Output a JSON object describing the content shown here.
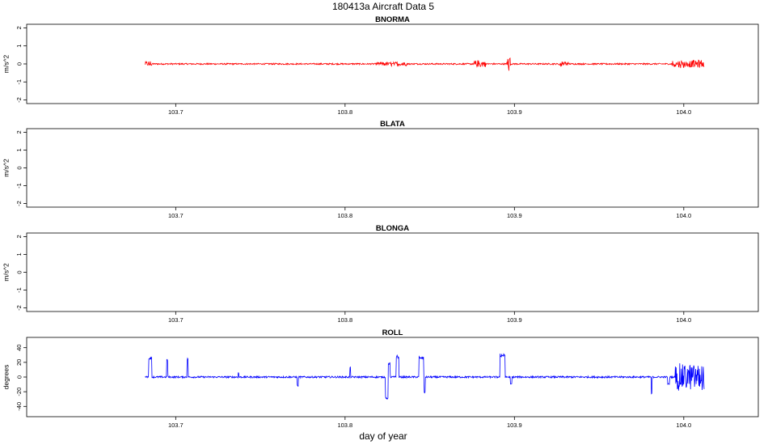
{
  "chart_data": {
    "title": "180413a   Aircraft Data 5",
    "xlabel": "day of year",
    "xlim": [
      103.612,
      104.044
    ],
    "xticks": [
      "103.7",
      "103.8",
      "103.9",
      "104.0"
    ],
    "data_range": [
      103.682,
      104.012
    ],
    "panels": [
      {
        "name": "BNORMA",
        "type": "line",
        "ylabel": "m/s^2",
        "ylim": [
          -2.2,
          2.2
        ],
        "yticks": [
          "-2",
          "-1",
          "0",
          "1",
          "2"
        ],
        "color": "#ff0000",
        "baseline": 0,
        "noise": 0.04,
        "bursts": [
          {
            "x": [
              103.682,
              103.686
            ],
            "amp": 0.14
          },
          {
            "x": [
              103.819,
              103.837
            ],
            "amp": 0.1
          },
          {
            "x": [
              103.876,
              103.883
            ],
            "amp": 0.18
          },
          {
            "x": [
              103.895,
              103.898
            ],
            "amp": 0.42
          },
          {
            "x": [
              103.926,
              103.932
            ],
            "amp": 0.16
          },
          {
            "x": [
              103.993,
              104.012
            ],
            "amp": 0.2
          }
        ],
        "spikes": []
      },
      {
        "name": "BLATA",
        "type": "line",
        "ylabel": "m/s^2",
        "ylim": [
          -2.2,
          2.2
        ],
        "yticks": [
          "-2",
          "-1",
          "0",
          "1",
          "2"
        ],
        "color": "#ff0000",
        "empty": true
      },
      {
        "name": "BLONGA",
        "type": "line",
        "ylabel": "m/s^2",
        "ylim": [
          -2.2,
          2.2
        ],
        "yticks": [
          "-2",
          "-1",
          "0",
          "1",
          "2"
        ],
        "color": "#ff0000",
        "empty": true
      },
      {
        "name": "ROLL",
        "type": "line",
        "ylabel": "degrees",
        "ylim": [
          -54,
          54
        ],
        "yticks": [
          "-40",
          "-20",
          "0",
          "20",
          "40"
        ],
        "color": "#0000ff",
        "baseline": 0,
        "noise": 1.2,
        "bursts": [
          {
            "x": [
              103.995,
              104.012
            ],
            "amp": 18
          }
        ],
        "spikes": [
          {
            "x": 103.685,
            "y": 28,
            "w": 0.002
          },
          {
            "x": 103.695,
            "y": 25,
            "w": 0.0006
          },
          {
            "x": 103.707,
            "y": 26,
            "w": 0.0006
          },
          {
            "x": 103.737,
            "y": 6,
            "w": 0.0006
          },
          {
            "x": 103.772,
            "y": -13,
            "w": 0.0006
          },
          {
            "x": 103.803,
            "y": 14,
            "w": 0.0006
          },
          {
            "x": 103.825,
            "y": -30,
            "w": 0.0025
          },
          {
            "x": 103.826,
            "y": 20,
            "w": 0.001
          },
          {
            "x": 103.831,
            "y": 30,
            "w": 0.0015
          },
          {
            "x": 103.845,
            "y": 29,
            "w": 0.003
          },
          {
            "x": 103.847,
            "y": -22,
            "w": 0.0008
          },
          {
            "x": 103.893,
            "y": 32,
            "w": 0.003
          },
          {
            "x": 103.898,
            "y": -10,
            "w": 0.0008
          },
          {
            "x": 103.981,
            "y": -23,
            "w": 0.0006
          },
          {
            "x": 103.991,
            "y": -10,
            "w": 0.001
          }
        ]
      }
    ]
  }
}
